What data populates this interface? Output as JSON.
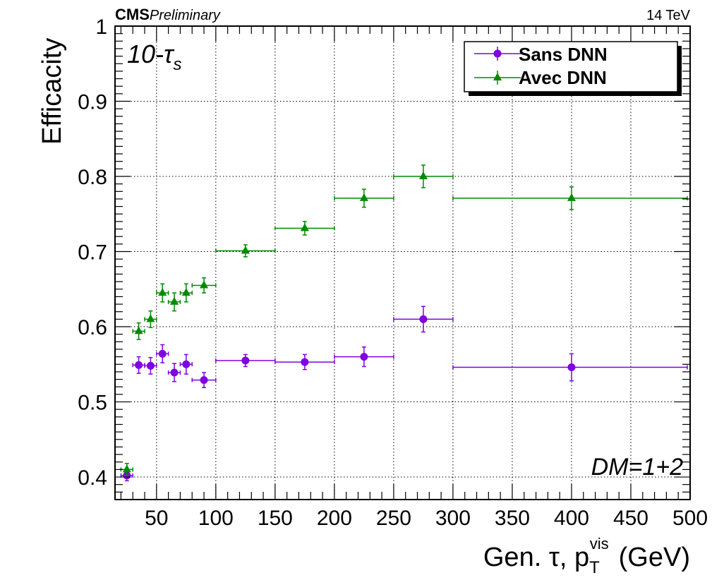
{
  "header": {
    "experiment": "CMS",
    "status": "Preliminary",
    "energy": "14 TeV"
  },
  "annotations": {
    "sample_main": "10-τ",
    "sample_sub": "s",
    "decay_mode": "DM=1+2"
  },
  "chart_data": {
    "type": "scatter",
    "title": "",
    "xlabel_main": "Gen. τ, p",
    "xlabel_sub": "T",
    "xlabel_sup": "vis",
    "xlabel_unit": "(GeV)",
    "ylabel": "Efficacity",
    "xlim": [
      15,
      500
    ],
    "ylim": [
      0.37,
      1.0
    ],
    "x_ticks": [
      50,
      100,
      150,
      200,
      250,
      300,
      350,
      400,
      450,
      500
    ],
    "y_ticks": [
      0.4,
      0.5,
      0.6,
      0.7,
      0.8,
      0.9,
      1.0
    ],
    "y_tick_labels": [
      "0.4",
      "0.5",
      "0.6",
      "0.7",
      "0.8",
      "0.9",
      "1"
    ],
    "grid": true,
    "legend_position": "top-right",
    "series": [
      {
        "name": "Sans DNN",
        "color": "#8000e0",
        "marker": "circle",
        "points": [
          {
            "x": 25,
            "xlo": 20,
            "xhi": 30,
            "y": 0.402,
            "err": 0.007
          },
          {
            "x": 35,
            "xlo": 30,
            "xhi": 40,
            "y": 0.549,
            "err": 0.011
          },
          {
            "x": 45,
            "xlo": 40,
            "xhi": 50,
            "y": 0.548,
            "err": 0.011
          },
          {
            "x": 55,
            "xlo": 50,
            "xhi": 60,
            "y": 0.564,
            "err": 0.012
          },
          {
            "x": 65,
            "xlo": 60,
            "xhi": 70,
            "y": 0.539,
            "err": 0.012
          },
          {
            "x": 75,
            "xlo": 70,
            "xhi": 80,
            "y": 0.55,
            "err": 0.013
          },
          {
            "x": 90,
            "xlo": 80,
            "xhi": 100,
            "y": 0.529,
            "err": 0.01
          },
          {
            "x": 125,
            "xlo": 100,
            "xhi": 150,
            "y": 0.555,
            "err": 0.008
          },
          {
            "x": 175,
            "xlo": 150,
            "xhi": 200,
            "y": 0.553,
            "err": 0.01
          },
          {
            "x": 225,
            "xlo": 200,
            "xhi": 250,
            "y": 0.56,
            "err": 0.013
          },
          {
            "x": 275,
            "xlo": 250,
            "xhi": 300,
            "y": 0.61,
            "err": 0.017
          },
          {
            "x": 400,
            "xlo": 300,
            "xhi": 500,
            "y": 0.546,
            "err": 0.018
          }
        ]
      },
      {
        "name": "Avec DNN",
        "color": "#008a00",
        "marker": "triangle",
        "points": [
          {
            "x": 25,
            "xlo": 20,
            "xhi": 30,
            "y": 0.41,
            "err": 0.008
          },
          {
            "x": 35,
            "xlo": 30,
            "xhi": 40,
            "y": 0.594,
            "err": 0.011
          },
          {
            "x": 45,
            "xlo": 40,
            "xhi": 50,
            "y": 0.61,
            "err": 0.011
          },
          {
            "x": 55,
            "xlo": 50,
            "xhi": 60,
            "y": 0.645,
            "err": 0.012
          },
          {
            "x": 65,
            "xlo": 60,
            "xhi": 70,
            "y": 0.633,
            "err": 0.012
          },
          {
            "x": 75,
            "xlo": 70,
            "xhi": 80,
            "y": 0.645,
            "err": 0.012
          },
          {
            "x": 90,
            "xlo": 80,
            "xhi": 100,
            "y": 0.655,
            "err": 0.01
          },
          {
            "x": 125,
            "xlo": 100,
            "xhi": 150,
            "y": 0.701,
            "err": 0.008
          },
          {
            "x": 175,
            "xlo": 150,
            "xhi": 200,
            "y": 0.731,
            "err": 0.009
          },
          {
            "x": 225,
            "xlo": 200,
            "xhi": 250,
            "y": 0.771,
            "err": 0.012
          },
          {
            "x": 275,
            "xlo": 250,
            "xhi": 300,
            "y": 0.8,
            "err": 0.015
          },
          {
            "x": 400,
            "xlo": 300,
            "xhi": 500,
            "y": 0.771,
            "err": 0.015
          }
        ]
      }
    ]
  }
}
